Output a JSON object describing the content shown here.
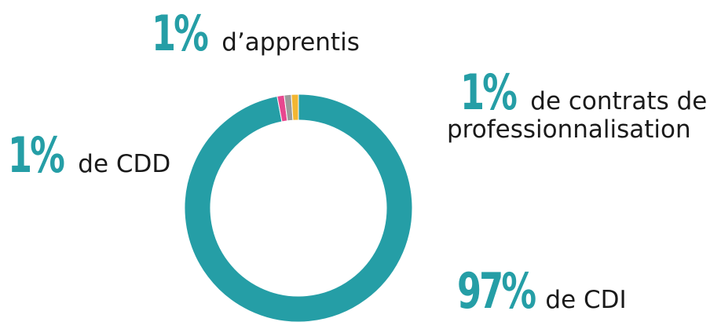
{
  "colors": {
    "accent": "#259ea6",
    "cdi": "#259ea6",
    "cdd": "#e8478f",
    "apprentis": "#9b9b9b",
    "pro": "#f3b632",
    "text": "#1a1a1a"
  },
  "chart_data": {
    "type": "pie",
    "variant": "donut",
    "slices": [
      {
        "key": "cdi",
        "value": 97
      },
      {
        "key": "cdd",
        "value": 1
      },
      {
        "key": "apprentis",
        "value": 1
      },
      {
        "key": "pro",
        "value": 1
      }
    ]
  },
  "callouts": {
    "apprentis": {
      "pct": "1%",
      "text": "d’apprentis"
    },
    "pro": {
      "pct": "1%",
      "text": "de contrats de",
      "text2": "professionnalisation"
    },
    "cdd": {
      "pct": "1%",
      "text": "de  CDD"
    },
    "cdi": {
      "pct": "97%",
      "text": "de CDI"
    }
  }
}
